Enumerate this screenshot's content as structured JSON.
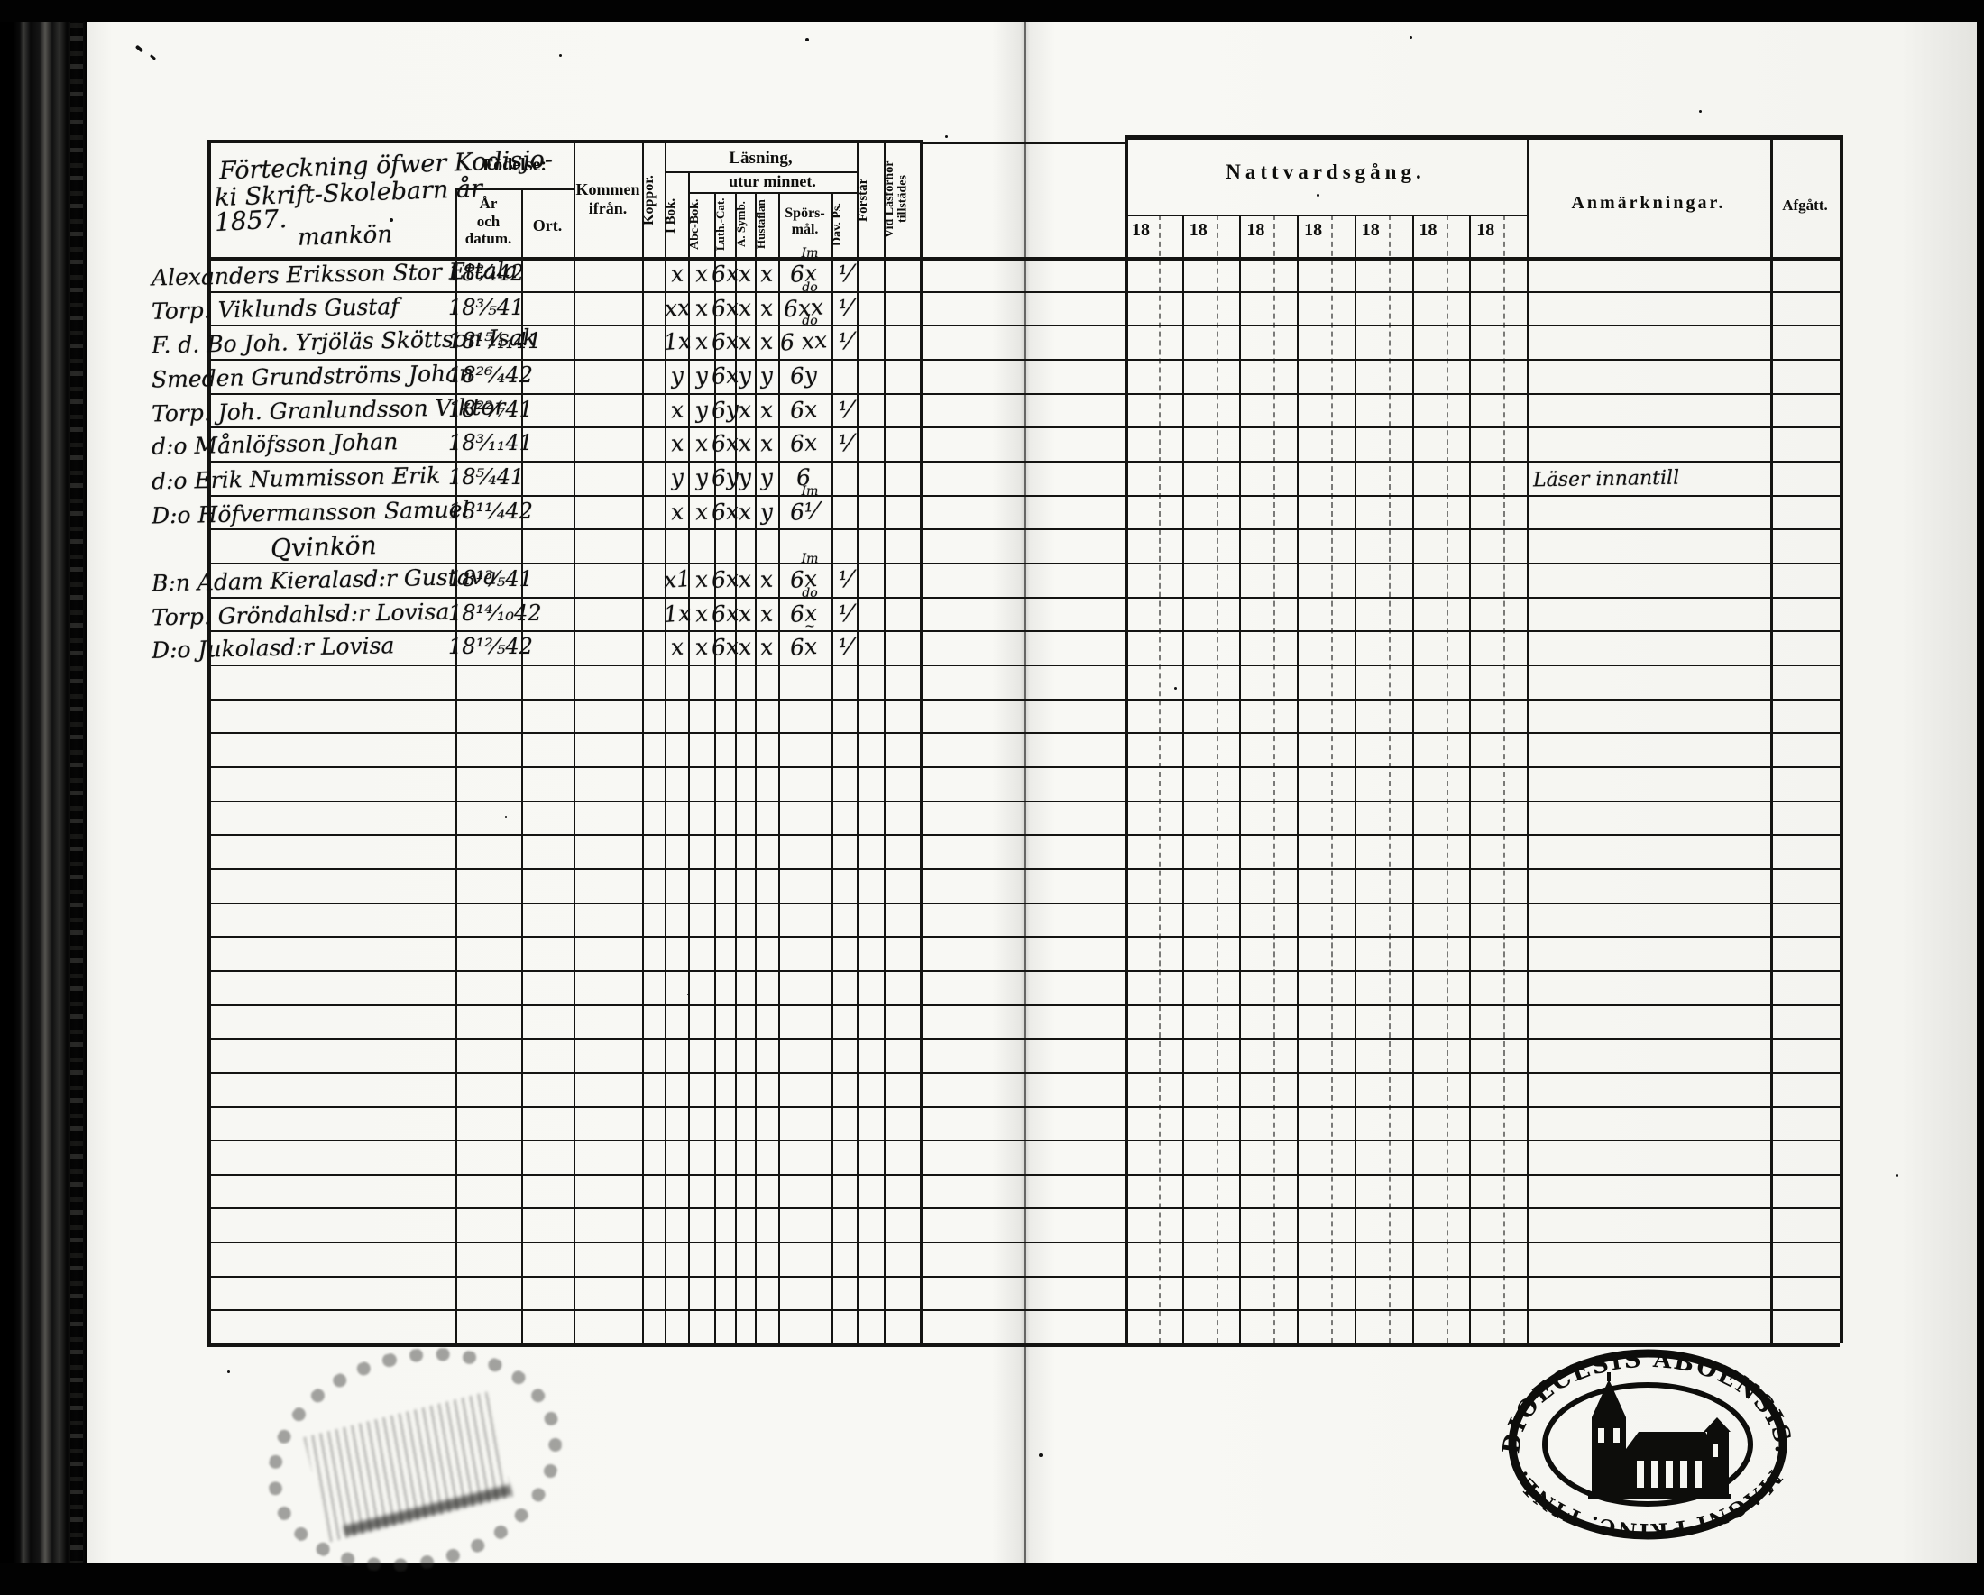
{
  "page_title": {
    "lines": [
      "Förteckning öfwer Kodisjo-",
      "ki Skrift-Skolebarn år",
      "1857.",
      "mankön"
    ]
  },
  "header": {
    "fodelse": "Födelse:",
    "ar_och_datum": [
      "År",
      "och",
      "datum."
    ],
    "ort": "Ort.",
    "kommen_ifran": [
      "Kommen",
      "ifrån."
    ],
    "koppor": "Koppor.",
    "lasning": "Läsning,",
    "utur_minnet": "utur minnet.",
    "i_bok": "I Bok.",
    "abc_bok": "Abc-Bok.",
    "luth_cat": "Luth.-Cat.",
    "a_symb": "A. Symb.",
    "hustaflan": "Hustaflan",
    "sporsmal": [
      "Spörs-",
      "mål."
    ],
    "dav_ps": "Dav. Ps.",
    "forstar": "Förstår",
    "vid_lasforhor": [
      "Vid Läsförhör",
      "tillstädes"
    ],
    "nattvardsgang": "Nattvardsgång.",
    "year_prefixes": [
      "18",
      "18",
      "18",
      "18",
      "18",
      "18",
      "18"
    ],
    "anmarkningar": "Anmärkningar.",
    "afgatt": "Afgått."
  },
  "rows": [
    {
      "name": "Alexanders Eriksson Stor Ettala",
      "date": "18²⁄₄42",
      "marks": {
        "i_bok": "x",
        "abc_bok": "x",
        "luth_cat": "6x",
        "a_symb": "x",
        "hustaflan": "x",
        "sporsmal": "6x",
        "sporsmal_note": "Im",
        "dav_ps": "⅟"
      },
      "remark": ""
    },
    {
      "name": "Torp. Viklunds Gustaf",
      "date": "18³⁄₅41",
      "marks": {
        "i_bok": "xx",
        "abc_bok": "x",
        "luth_cat": "6x",
        "a_symb": "x",
        "hustaflan": "x",
        "sporsmal": "6xx",
        "sporsmal_note": "do",
        "dav_ps": "⅟"
      },
      "remark": ""
    },
    {
      "name": "F. d. Bo Joh. Yrjöläs Sköttson Isak",
      "date": "18¹⁵⁄₁₁41",
      "marks": {
        "i_bok": "1x",
        "abc_bok": "x",
        "luth_cat": "6x",
        "a_symb": "x",
        "hustaflan": "x",
        "sporsmal": "6 xx",
        "sporsmal_note": "do",
        "dav_ps": "⅟"
      },
      "remark": ""
    },
    {
      "name": "Smeden Grundströms Johan",
      "date": "18²⁶⁄₄42",
      "marks": {
        "i_bok": "y",
        "abc_bok": "y",
        "luth_cat": "6x",
        "a_symb": "y",
        "hustaflan": "y",
        "sporsmal": "6y",
        "sporsmal_note": "",
        "dav_ps": ""
      },
      "remark": ""
    },
    {
      "name": "Torp. Joh. Granlundsson Viktor",
      "date": "18²²⁄₇41",
      "marks": {
        "i_bok": "x",
        "abc_bok": "y",
        "luth_cat": "6y",
        "a_symb": "x",
        "hustaflan": "x",
        "sporsmal": "6x",
        "sporsmal_note": "",
        "dav_ps": "⅟"
      },
      "remark": ""
    },
    {
      "name": "d:o Månlöfsson Johan",
      "date": "18³⁄₁₁41",
      "marks": {
        "i_bok": "x",
        "abc_bok": "x",
        "luth_cat": "6x",
        "a_symb": "x",
        "hustaflan": "x",
        "sporsmal": "6x",
        "sporsmal_note": "",
        "dav_ps": "⅟"
      },
      "remark": ""
    },
    {
      "name": "d:o Erik Nummisson Erik",
      "date": "18⁵⁄₄41",
      "marks": {
        "i_bok": "y",
        "abc_bok": "y",
        "luth_cat": "6y",
        "a_symb": "y",
        "hustaflan": "y",
        "sporsmal": "6",
        "sporsmal_note": "",
        "dav_ps": ""
      },
      "remark": "Läser innantill"
    },
    {
      "name": "D:o Höfvermansson Samuel",
      "date": "18¹¹⁄₄42",
      "marks": {
        "i_bok": "x",
        "abc_bok": "x",
        "luth_cat": "6x",
        "a_symb": "x",
        "hustaflan": "y",
        "sporsmal": "6⅟",
        "sporsmal_note": "Im",
        "dav_ps": ""
      },
      "remark": ""
    },
    {
      "section": "Qvinkön"
    },
    {
      "name": "B:n Adam Kieralasd:r Gustava",
      "date": "18¹³⁄₅41",
      "marks": {
        "i_bok": "x1",
        "abc_bok": "x",
        "luth_cat": "6x",
        "a_symb": "x",
        "hustaflan": "x",
        "sporsmal": "6x",
        "sporsmal_note": "Im",
        "dav_ps": "⅟"
      },
      "remark": ""
    },
    {
      "name": "Torp. Gröndahlsd:r Lovisa",
      "date": "18¹⁴⁄₁₀42",
      "marks": {
        "i_bok": "1x",
        "abc_bok": "x",
        "luth_cat": "6x",
        "a_symb": "x",
        "hustaflan": "x",
        "sporsmal": "6x",
        "sporsmal_note": "do",
        "dav_ps": "⅟"
      },
      "remark": ""
    },
    {
      "name": "D:o Jukolasd:r Lovisa",
      "date": "18¹²⁄₅42",
      "marks": {
        "i_bok": "x",
        "abc_bok": "x",
        "luth_cat": "6x",
        "a_symb": "x",
        "hustaflan": "x",
        "sporsmal": "6x",
        "sporsmal_note": "~",
        "dav_ps": "⅟"
      },
      "remark": ""
    }
  ],
  "stamp": {
    "top_text": "DIOECESIS ABOENSIS.",
    "bottom_text": "MAGNI PRINC. FINL."
  }
}
